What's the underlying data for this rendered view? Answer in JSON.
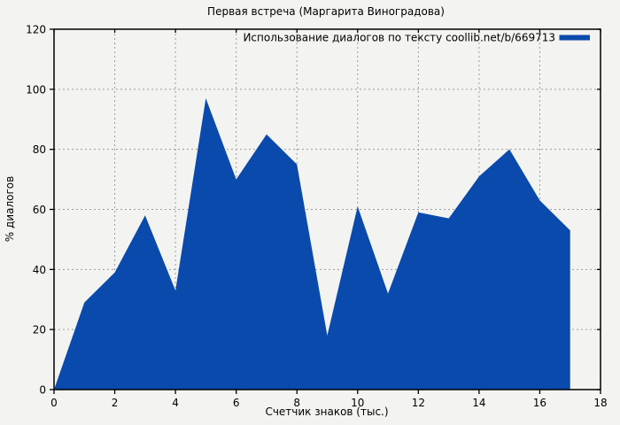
{
  "chart_data": {
    "type": "area",
    "title": "Первая встреча (Маргарита Виноградова)",
    "xlabel": "Счетчик знаков (тыс.)",
    "ylabel": "% диалогов",
    "legend": [
      {
        "label": "Использование диалогов по тексту coollib.net/b/669713",
        "color": "#0b4aad"
      }
    ],
    "legend_position": "top-right-inside",
    "x": [
      0,
      1,
      2,
      3,
      4,
      5,
      6,
      7,
      8,
      9,
      10,
      11,
      12,
      13,
      14,
      15,
      16,
      17
    ],
    "values": [
      0,
      29,
      39,
      58,
      33,
      97,
      70,
      85,
      75,
      18,
      61,
      32,
      59,
      57,
      71,
      80,
      63,
      53
    ],
    "xlim": [
      0,
      18
    ],
    "ylim": [
      0,
      120
    ],
    "x_ticks": [
      0,
      2,
      4,
      6,
      8,
      10,
      12,
      14,
      16,
      18
    ],
    "y_ticks": [
      0,
      20,
      40,
      60,
      80,
      100,
      120
    ],
    "grid": true,
    "grid_style": "dashed",
    "colors": {
      "fill": "#0b4aad",
      "background": "#f3f3f1",
      "grid": "#9c9c9c",
      "axis": "#000000",
      "text": "#000000"
    }
  }
}
